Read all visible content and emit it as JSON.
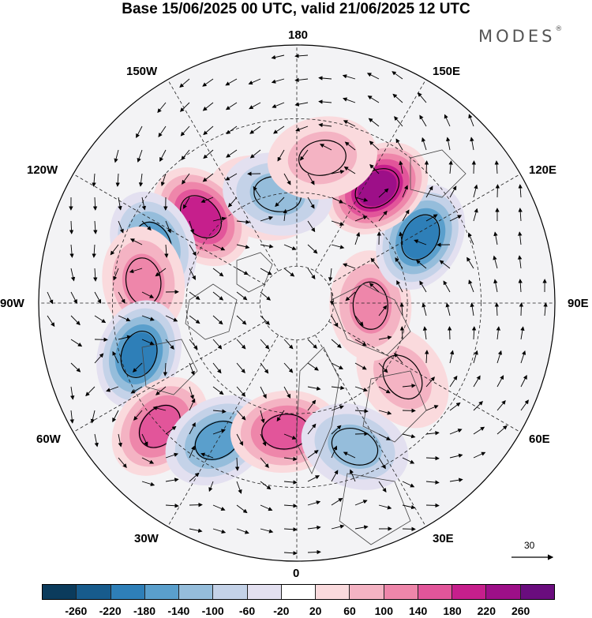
{
  "title": "Base 15/06/2025 00 UTC, valid 21/06/2025 12 UTC",
  "brand": "MODES",
  "brand_mark": "®",
  "longitude_labels": {
    "n180": "180",
    "w150": "150W",
    "e150": "150E",
    "w120": "120W",
    "e120": "120E",
    "w90": "90W",
    "e90": "90E",
    "w60": "60W",
    "e60": "60E",
    "w30": "30W",
    "e30": "30E",
    "s0": "0"
  },
  "reference_vector": "30",
  "colorbar": {
    "colors": [
      "#0b3b5c",
      "#175b8c",
      "#2e7fb8",
      "#5a9fcc",
      "#95bddb",
      "#c4d2e8",
      "#e3e0f0",
      "#ffffff",
      "#fadadd",
      "#f4b3c3",
      "#ee86aa",
      "#e2559a",
      "#c61f8c",
      "#9d0f88",
      "#6a0d7e"
    ],
    "ticks": [
      "-260",
      "-220",
      "-180",
      "-140",
      "-100",
      "-60",
      "-20",
      "20",
      "60",
      "100",
      "140",
      "180",
      "220",
      "260"
    ]
  },
  "anomaly_field": {
    "centers": [
      {
        "lon": -162,
        "lat": 60,
        "value": 80
      },
      {
        "lon": -132,
        "lat": 55,
        "value": 180
      },
      {
        "lon": -112,
        "lat": 48,
        "value": -170
      },
      {
        "lon": -98,
        "lat": 48,
        "value": 100
      },
      {
        "lon": -72,
        "lat": 45,
        "value": -190
      },
      {
        "lon": -48,
        "lat": 40,
        "value": 170
      },
      {
        "lon": -30,
        "lat": 47,
        "value": -150
      },
      {
        "lon": -5,
        "lat": 55,
        "value": 150
      },
      {
        "lon": 22,
        "lat": 48,
        "value": -130
      },
      {
        "lon": 55,
        "lat": 55,
        "value": 70
      },
      {
        "lon": 88,
        "lat": 70,
        "value": 110
      },
      {
        "lon": 118,
        "lat": 52,
        "value": -180
      },
      {
        "lon": 145,
        "lat": 52,
        "value": 240
      },
      {
        "lon": -170,
        "lat": 60,
        "value": -120
      },
      {
        "lon": 170,
        "lat": 50,
        "value": 80
      }
    ]
  }
}
